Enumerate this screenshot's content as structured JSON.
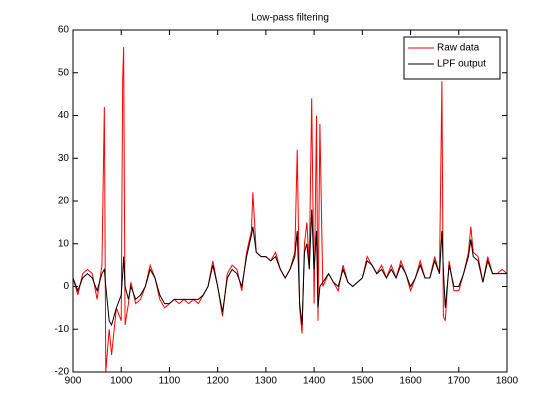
{
  "chart_data": {
    "type": "line",
    "title": "Low-pass filtering",
    "x": [
      900,
      910,
      920,
      930,
      940,
      950,
      960,
      965,
      968,
      975,
      980,
      990,
      1000,
      1003,
      1005,
      1008,
      1015,
      1020,
      1030,
      1040,
      1050,
      1060,
      1070,
      1080,
      1090,
      1100,
      1110,
      1120,
      1130,
      1140,
      1150,
      1160,
      1170,
      1180,
      1190,
      1200,
      1210,
      1220,
      1230,
      1240,
      1250,
      1260,
      1270,
      1273,
      1280,
      1290,
      1300,
      1310,
      1320,
      1330,
      1340,
      1350,
      1360,
      1365,
      1370,
      1375,
      1380,
      1385,
      1390,
      1395,
      1400,
      1405,
      1408,
      1412,
      1418,
      1430,
      1440,
      1450,
      1460,
      1470,
      1480,
      1490,
      1500,
      1510,
      1520,
      1530,
      1540,
      1550,
      1560,
      1570,
      1580,
      1590,
      1600,
      1610,
      1620,
      1630,
      1640,
      1650,
      1660,
      1665,
      1668,
      1672,
      1680,
      1690,
      1700,
      1710,
      1720,
      1725,
      1730,
      1740,
      1750,
      1760,
      1770,
      1780,
      1790,
      1800
    ],
    "series": [
      {
        "name": "Raw data",
        "color": "#ff0000",
        "values": [
          2,
          -2,
          3,
          4,
          3,
          -3,
          5,
          42,
          -20,
          -10,
          -16,
          -5,
          -8,
          48,
          56,
          -9,
          -4,
          1,
          -4,
          -3,
          0,
          5,
          2,
          -3,
          -5,
          -4,
          -3,
          -4,
          -3,
          -4,
          -3,
          -4,
          -2,
          0,
          6,
          0,
          -7,
          3,
          5,
          4,
          -1,
          8,
          13,
          22,
          8,
          7,
          7,
          6,
          8,
          4,
          2,
          4,
          8,
          32,
          -5,
          -11,
          10,
          15,
          5,
          44,
          -4,
          40,
          -8,
          38,
          0,
          3,
          1,
          -1,
          5,
          1,
          0,
          1,
          2,
          7,
          5,
          3,
          5,
          2,
          5,
          2,
          6,
          3,
          -1,
          2,
          6,
          2,
          2,
          7,
          3,
          48,
          -7,
          -8,
          6,
          -1,
          -1,
          3,
          8,
          14,
          8,
          7,
          1,
          7,
          3,
          3,
          4,
          3
        ]
      },
      {
        "name": "LPF output",
        "color": "#000000",
        "values": [
          2,
          -1,
          2,
          3,
          2,
          -1,
          3,
          4,
          0,
          -8,
          -9,
          -5,
          -2,
          3,
          7,
          0,
          -3,
          0,
          -3,
          -2,
          0,
          4,
          2,
          -2,
          -4,
          -4,
          -3,
          -3,
          -3,
          -3,
          -3,
          -3,
          -2,
          0,
          5,
          0,
          -6,
          2,
          4,
          3,
          0,
          7,
          12,
          14,
          8,
          7,
          7,
          6,
          7,
          4,
          2,
          4,
          7,
          13,
          -4,
          -9,
          8,
          10,
          4,
          18,
          4,
          13,
          -5,
          0,
          1,
          3,
          1,
          0,
          4,
          1,
          0,
          1,
          2,
          6,
          5,
          3,
          4,
          2,
          4,
          2,
          5,
          3,
          0,
          2,
          5,
          2,
          2,
          6,
          3,
          13,
          4,
          -5,
          5,
          0,
          0,
          3,
          7,
          11,
          7,
          6,
          1,
          6,
          3,
          3,
          3,
          3
        ]
      }
    ],
    "xlim": [
      900,
      1800
    ],
    "ylim": [
      -20,
      60
    ],
    "xticks": [
      900,
      1000,
      1100,
      1200,
      1300,
      1400,
      1500,
      1600,
      1700,
      1800
    ],
    "yticks": [
      -20,
      -10,
      0,
      10,
      20,
      30,
      40,
      50,
      60
    ],
    "grid": false,
    "legend": "northeast"
  }
}
